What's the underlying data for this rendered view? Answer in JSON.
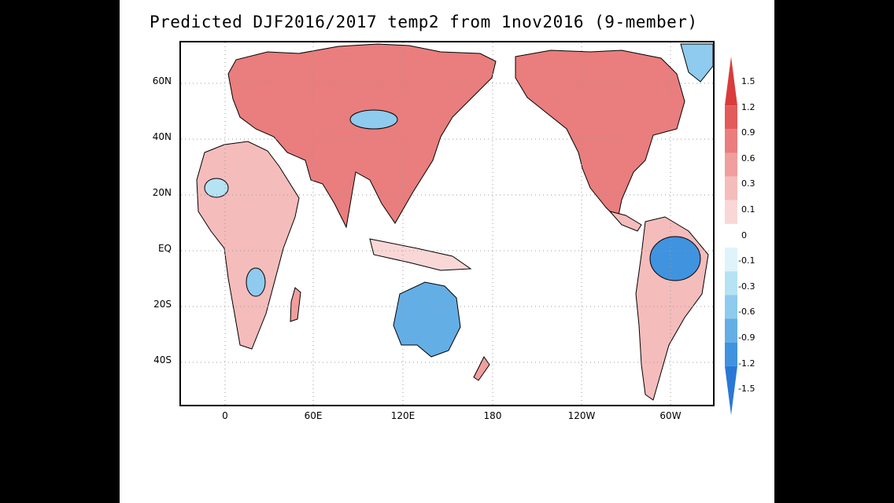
{
  "title": "Predicted DJF2016/2017 temp2 from 1nov2016 (9-member)",
  "map": {
    "projection": "cylindrical equidistant, centered on 180",
    "lat_labels": [
      "60N",
      "40N",
      "20N",
      "EQ",
      "20S",
      "40S"
    ],
    "lon_labels": [
      "0",
      "60E",
      "120E",
      "180",
      "120W",
      "60W"
    ],
    "grid": "dotted lines"
  },
  "colorbar": {
    "labels": [
      "1.5",
      "1.2",
      "0.9",
      "0.6",
      "0.3",
      "0.1",
      "0",
      "-0.1",
      "-0.3",
      "-0.6",
      "-0.9",
      "-1.2",
      "-1.5"
    ],
    "colors": [
      "#d93c3c",
      "#e25c5c",
      "#ea7d7d",
      "#f19e9e",
      "#f5bcbc",
      "#fad7d7",
      "#ffffff",
      "#dff3fa",
      "#b5e3f4",
      "#8ecbee",
      "#64aee6",
      "#3f93df",
      "#2a78d6"
    ]
  }
}
